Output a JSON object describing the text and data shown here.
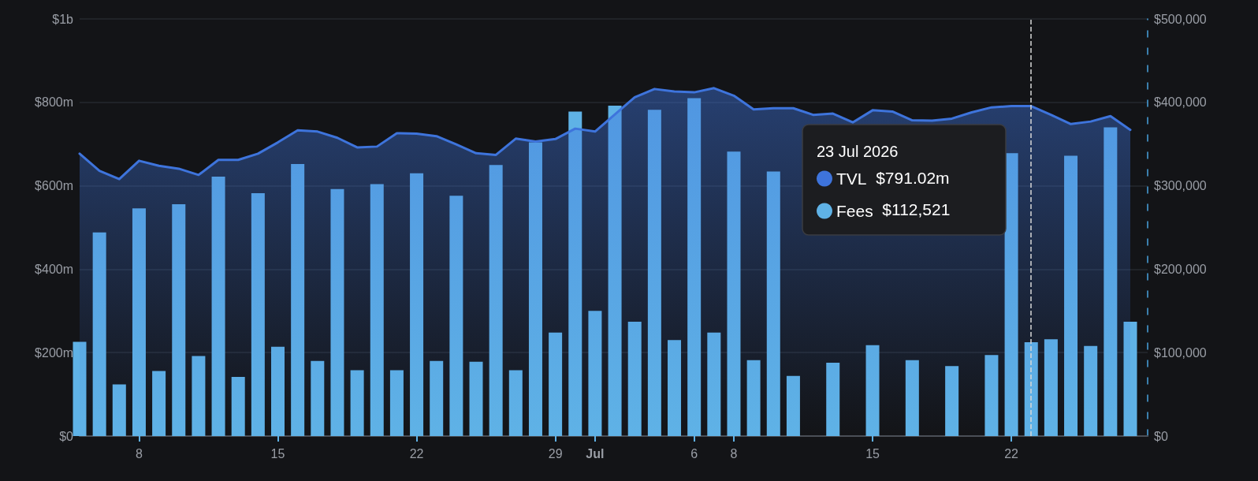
{
  "chart_data": {
    "type": "bar",
    "x": [
      "2026-06-05",
      "2026-06-06",
      "2026-06-07",
      "2026-06-08",
      "2026-06-09",
      "2026-06-10",
      "2026-06-11",
      "2026-06-12",
      "2026-06-13",
      "2026-06-14",
      "2026-06-15",
      "2026-06-16",
      "2026-06-17",
      "2026-06-18",
      "2026-06-19",
      "2026-06-20",
      "2026-06-21",
      "2026-06-22",
      "2026-06-23",
      "2026-06-24",
      "2026-06-25",
      "2026-06-26",
      "2026-06-27",
      "2026-06-28",
      "2026-06-29",
      "2026-06-30",
      "2026-07-01",
      "2026-07-02",
      "2026-07-03",
      "2026-07-04",
      "2026-07-05",
      "2026-07-06",
      "2026-07-07",
      "2026-07-08",
      "2026-07-09",
      "2026-07-10",
      "2026-07-11",
      "2026-07-12",
      "2026-07-13",
      "2026-07-14",
      "2026-07-15",
      "2026-07-16",
      "2026-07-17",
      "2026-07-18",
      "2026-07-19",
      "2026-07-20",
      "2026-07-21",
      "2026-07-22",
      "2026-07-23",
      "2026-07-24",
      "2026-07-25",
      "2026-07-26",
      "2026-07-27",
      "2026-07-28"
    ],
    "series": [
      {
        "name": "TVL",
        "type": "area",
        "color": "#3e74dc",
        "values": [
          677000000,
          636000000,
          616000000,
          660000000,
          648000000,
          641000000,
          626000000,
          662000000,
          662000000,
          677000000,
          704000000,
          733000000,
          730000000,
          715000000,
          692000000,
          694000000,
          726000000,
          725000000,
          719000000,
          699000000,
          678000000,
          674000000,
          713000000,
          706000000,
          712000000,
          737000000,
          730000000,
          771000000,
          812000000,
          832000000,
          826000000,
          824000000,
          834000000,
          816000000,
          783000000,
          786000000,
          786000000,
          770000000,
          773000000,
          752000000,
          781000000,
          778000000,
          757000000,
          756000000,
          761000000,
          776000000,
          788000000,
          791000000,
          791020000,
          770000000,
          748000000,
          754000000,
          767000000,
          734000000
        ]
      },
      {
        "name": "Fees",
        "axis": "y2",
        "color": "#5fb2e6",
        "values": [
          113000,
          244000,
          62000,
          273000,
          78000,
          278000,
          96000,
          311000,
          71000,
          291000,
          107000,
          326000,
          90000,
          296000,
          79000,
          302000,
          79000,
          315000,
          90000,
          288000,
          89000,
          325000,
          79000,
          352000,
          124000,
          389000,
          150000,
          396000,
          137000,
          391000,
          115000,
          405000,
          124000,
          341000,
          91000,
          317000,
          72000,
          null,
          88000,
          null,
          109000,
          null,
          91000,
          null,
          84000,
          null,
          97000,
          339000,
          112521,
          116000,
          336000,
          108000,
          370000,
          137000
        ]
      }
    ],
    "xlim": [
      "2026-06-05",
      "2026-07-28T21:00"
    ],
    "xticks": [
      {
        "value": "2026-06-08",
        "label": "8"
      },
      {
        "value": "2026-06-15",
        "label": "15"
      },
      {
        "value": "2026-06-22",
        "label": "22"
      },
      {
        "value": "2026-06-29",
        "label": "29"
      },
      {
        "value": "2026-07-01",
        "label": "Jul"
      },
      {
        "value": "2026-07-06",
        "label": "6"
      },
      {
        "value": "2026-07-08",
        "label": "8"
      },
      {
        "value": "2026-07-15",
        "label": "15"
      },
      {
        "value": "2026-07-22",
        "label": "22"
      }
    ],
    "ylim": [
      0,
      1000000000
    ],
    "yticks": [
      {
        "value": 0,
        "label": "$0"
      },
      {
        "value": 200000000,
        "label": "$200m"
      },
      {
        "value": 400000000,
        "label": "$400m"
      },
      {
        "value": 600000000,
        "label": "$600m"
      },
      {
        "value": 800000000,
        "label": "$800m"
      },
      {
        "value": 1000000000,
        "label": "$1b"
      }
    ],
    "y2lim": [
      0,
      500000
    ],
    "y2ticks": [
      {
        "value": 0,
        "label": "$0"
      },
      {
        "value": 100000,
        "label": "$100,000"
      },
      {
        "value": 200000,
        "label": "$200,000"
      },
      {
        "value": 300000,
        "label": "$300,000"
      },
      {
        "value": 400000,
        "label": "$400,000"
      },
      {
        "value": 500000,
        "label": "$500,000"
      }
    ],
    "ref_lines": [
      {
        "axis": "x",
        "value": "2026-07-23",
        "color": "#d8d8d8",
        "line_style": "dashed"
      }
    ],
    "annotations": [
      "23 Jul 2026",
      "$791.02m",
      "$112,521"
    ],
    "grid": "y",
    "legend": "top right"
  }
}
